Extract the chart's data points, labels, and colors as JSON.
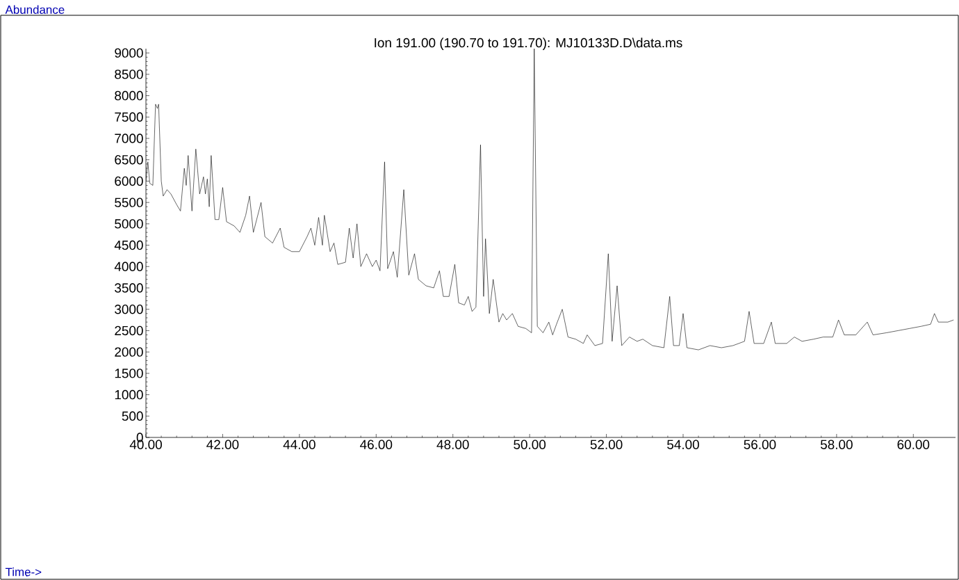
{
  "chart_data": {
    "type": "line",
    "title": "Ion 191.00 (190.70 to 191.70): MJ10133D.D\\data.ms",
    "annotations": [
      "Abundance",
      "Time->"
    ],
    "xlim": [
      40,
      61.1
    ],
    "ylim": [
      0,
      9100
    ],
    "xticks": [
      {
        "value": 40,
        "label": "40.00"
      },
      {
        "value": 42,
        "label": "42.00"
      },
      {
        "value": 44,
        "label": "44.00"
      },
      {
        "value": 46,
        "label": "46.00"
      },
      {
        "value": 48,
        "label": "48.00"
      },
      {
        "value": 50,
        "label": "50.00"
      },
      {
        "value": 52,
        "label": "52.00"
      },
      {
        "value": 54,
        "label": "54.00"
      },
      {
        "value": 56,
        "label": "56.00"
      },
      {
        "value": 58,
        "label": "58.00"
      },
      {
        "value": 60,
        "label": "60.00"
      }
    ],
    "yticks": [
      0,
      500,
      1000,
      1500,
      2000,
      2500,
      3000,
      3500,
      4000,
      4500,
      5000,
      5500,
      6000,
      6500,
      7000,
      7500,
      8000,
      8500,
      9000
    ],
    "marker": "none",
    "line_style": "solid",
    "x": [
      40.0,
      40.05,
      40.1,
      40.18,
      40.25,
      40.3,
      40.33,
      40.4,
      40.45,
      40.55,
      40.65,
      40.8,
      40.9,
      41.0,
      41.05,
      41.1,
      41.2,
      41.3,
      41.4,
      41.5,
      41.55,
      41.6,
      41.65,
      41.7,
      41.8,
      41.9,
      42.0,
      42.1,
      42.3,
      42.45,
      42.6,
      42.7,
      42.8,
      43.0,
      43.1,
      43.3,
      43.5,
      43.6,
      43.8,
      44.0,
      44.2,
      44.3,
      44.4,
      44.5,
      44.6,
      44.65,
      44.8,
      44.9,
      45.0,
      45.2,
      45.3,
      45.4,
      45.5,
      45.6,
      45.75,
      45.9,
      46.0,
      46.1,
      46.22,
      46.3,
      46.45,
      46.55,
      46.72,
      46.85,
      47.0,
      47.1,
      47.3,
      47.5,
      47.65,
      47.75,
      47.9,
      48.05,
      48.15,
      48.3,
      48.4,
      48.5,
      48.6,
      48.72,
      48.8,
      48.85,
      48.95,
      49.05,
      49.2,
      49.3,
      49.4,
      49.55,
      49.7,
      49.9,
      50.05,
      50.12,
      50.2,
      50.35,
      50.5,
      50.6,
      50.7,
      50.85,
      51.0,
      51.2,
      51.4,
      51.5,
      51.7,
      51.9,
      52.05,
      52.15,
      52.28,
      52.4,
      52.6,
      52.8,
      52.95,
      53.2,
      53.5,
      53.65,
      53.75,
      53.9,
      54.0,
      54.1,
      54.4,
      54.7,
      55.0,
      55.3,
      55.6,
      55.72,
      55.85,
      56.1,
      56.3,
      56.4,
      56.7,
      56.9,
      57.1,
      57.4,
      57.65,
      57.9,
      58.05,
      58.2,
      58.5,
      58.8,
      58.95,
      59.3,
      59.6,
      59.9,
      60.2,
      60.45,
      60.55,
      60.65,
      60.9,
      61.05
    ],
    "series": [
      {
        "color": "#000000",
        "values": [
          6000,
          6450,
          5950,
          5900,
          7800,
          7700,
          7800,
          6000,
          5650,
          5800,
          5700,
          5450,
          5300,
          6300,
          5900,
          6600,
          5300,
          6750,
          5700,
          6100,
          5700,
          6050,
          5400,
          6600,
          5100,
          5100,
          5850,
          5050,
          4950,
          4800,
          5200,
          5650,
          4800,
          5500,
          4700,
          4550,
          4900,
          4450,
          4350,
          4350,
          4700,
          4900,
          4500,
          5150,
          4500,
          5200,
          4350,
          4550,
          4050,
          4100,
          4900,
          4200,
          5000,
          4000,
          4300,
          4000,
          4150,
          3900,
          6450,
          3950,
          4350,
          3750,
          5800,
          3800,
          4300,
          3700,
          3550,
          3500,
          3900,
          3300,
          3300,
          4050,
          3150,
          3100,
          3300,
          2950,
          3050,
          6850,
          3300,
          4650,
          2900,
          3700,
          2700,
          2900,
          2750,
          2900,
          2600,
          2550,
          2450,
          9100,
          2600,
          2450,
          2700,
          2400,
          2650,
          3000,
          2350,
          2300,
          2200,
          2400,
          2150,
          2200,
          4300,
          2250,
          3550,
          2150,
          2350,
          2250,
          2300,
          2150,
          2100,
          3300,
          2150,
          2150,
          2900,
          2100,
          2050,
          2150,
          2100,
          2150,
          2250,
          2950,
          2200,
          2200,
          2700,
          2200,
          2200,
          2350,
          2250,
          2300,
          2350,
          2350,
          2750,
          2400,
          2400,
          2700,
          2400,
          2450,
          2500,
          2550,
          2600,
          2650,
          2900,
          2700,
          2700,
          2750
        ]
      }
    ]
  }
}
